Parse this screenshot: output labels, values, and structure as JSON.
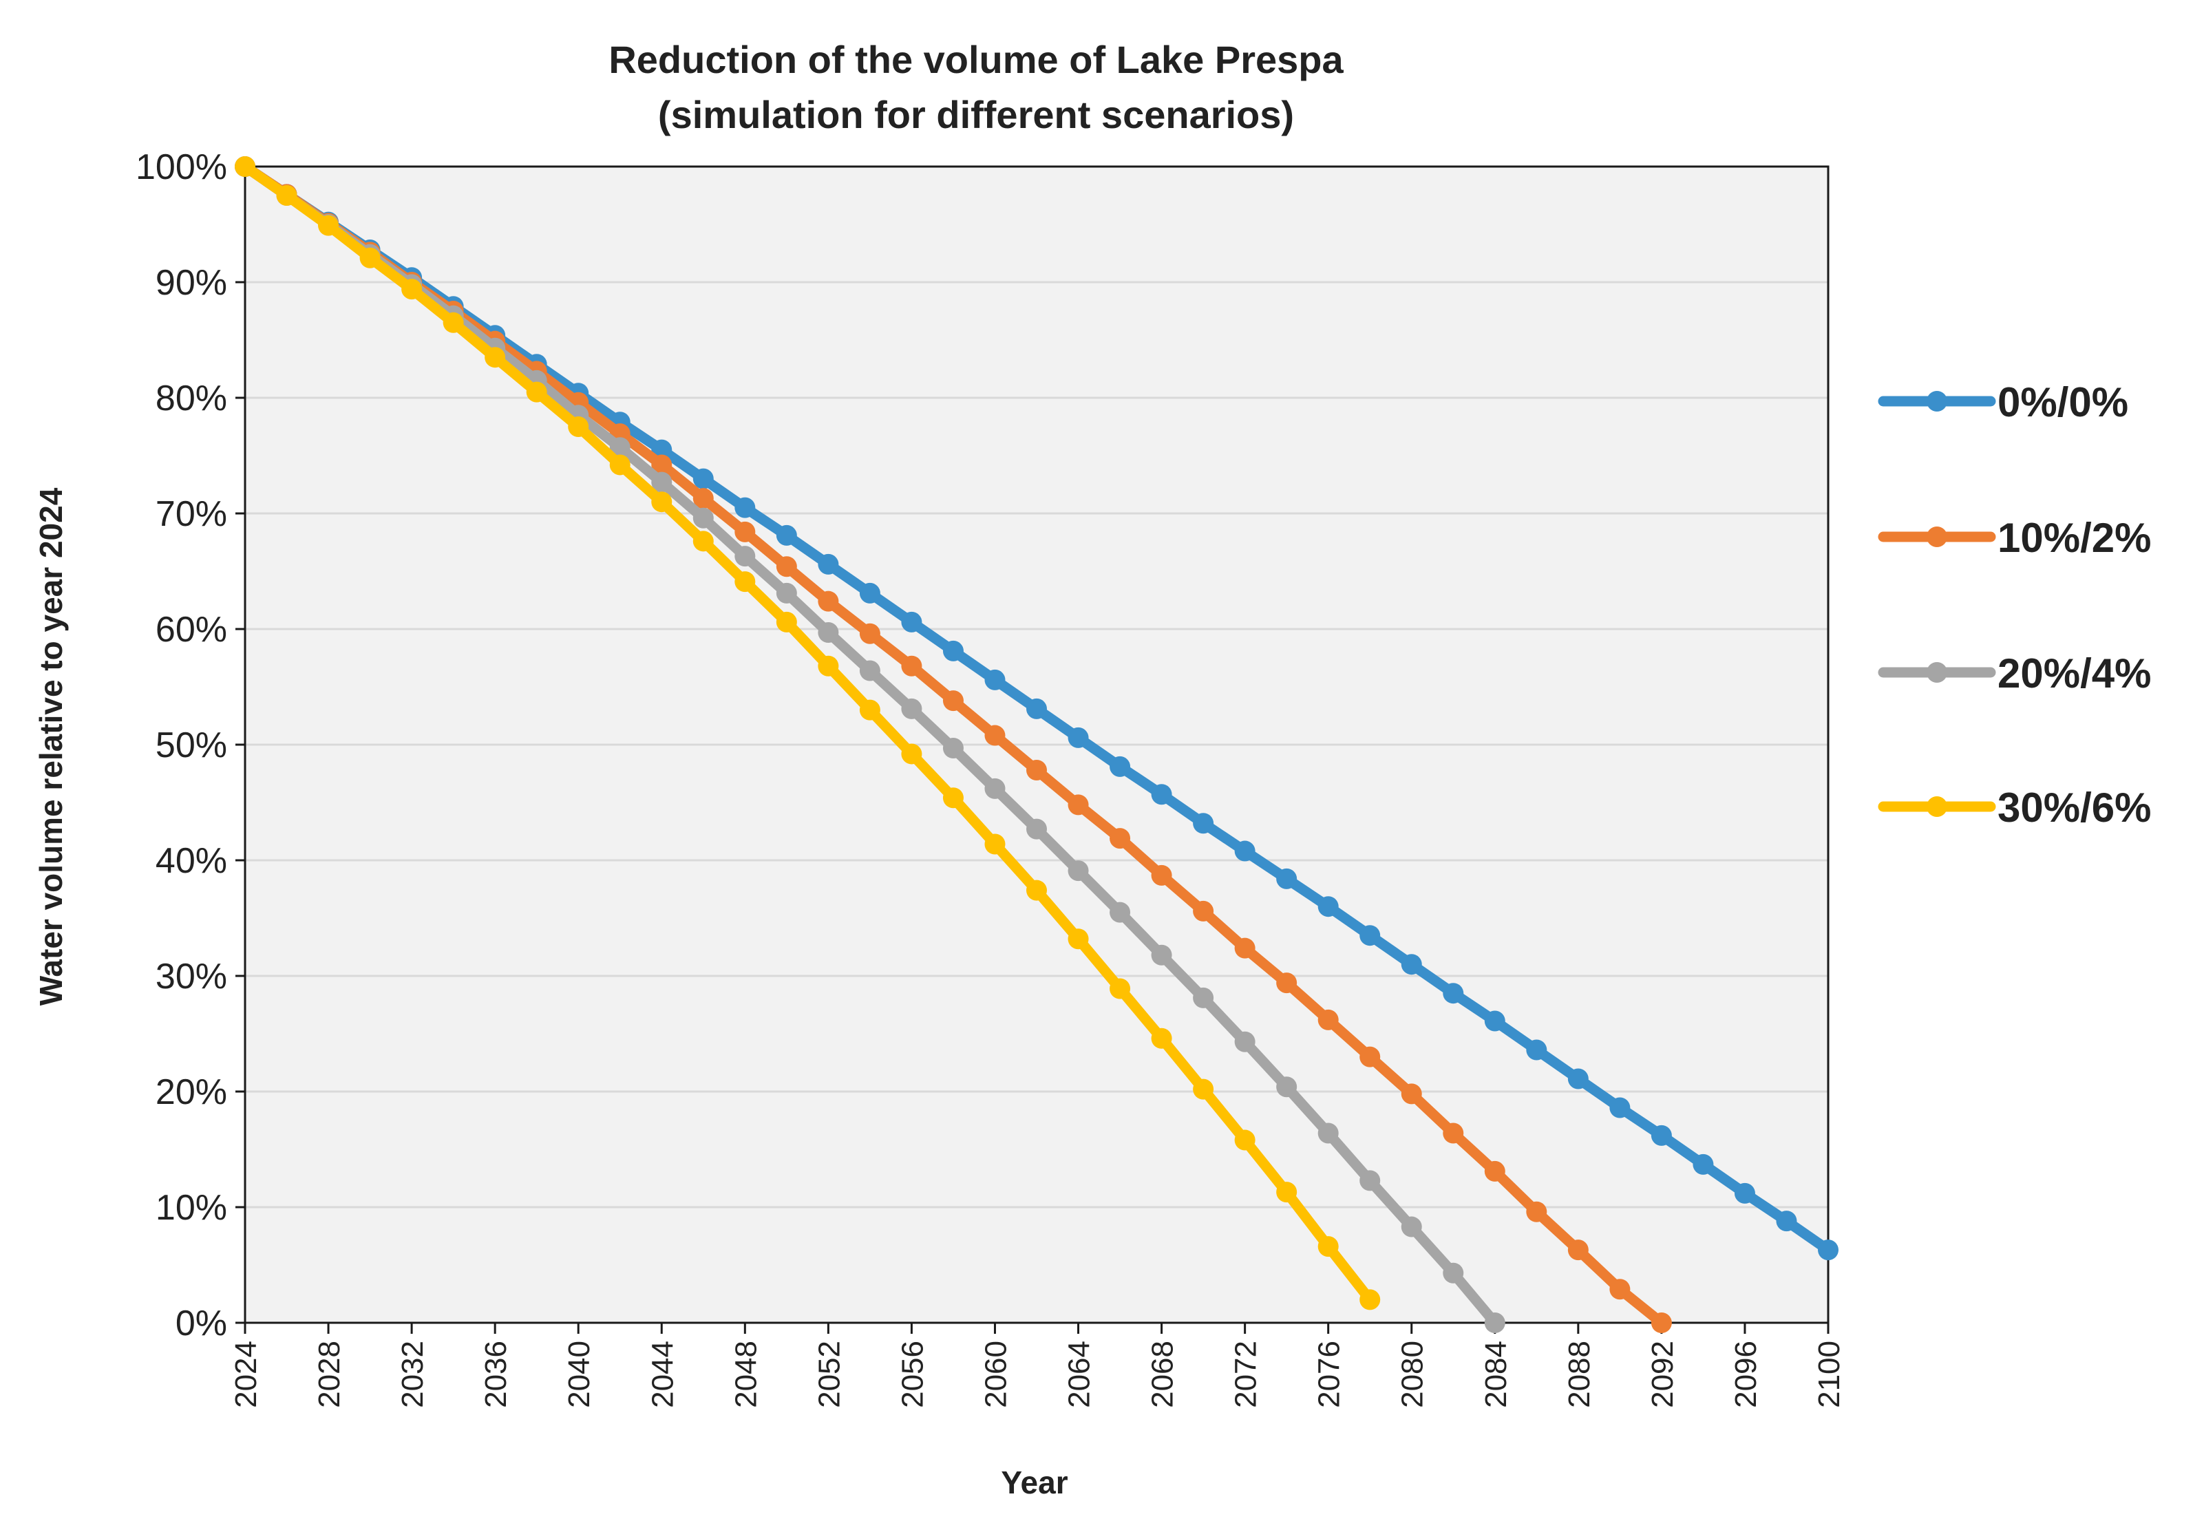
{
  "chart_data": {
    "type": "line",
    "title": [
      "Reduction of the volume of Lake Prespa",
      "(simulation for different scenarios)"
    ],
    "xlabel": "Year",
    "ylabel": "Water volume relative to year 2024",
    "xlim": [
      2024,
      2100
    ],
    "ylim": [
      0,
      100
    ],
    "xticks": [
      2024,
      2028,
      2032,
      2036,
      2040,
      2044,
      2048,
      2052,
      2056,
      2060,
      2064,
      2068,
      2072,
      2076,
      2080,
      2084,
      2088,
      2092,
      2096,
      2100
    ],
    "yticks": [
      0,
      10,
      20,
      30,
      40,
      50,
      60,
      70,
      80,
      90,
      100
    ],
    "ytick_labels": [
      "0%",
      "10%",
      "20%",
      "30%",
      "40%",
      "50%",
      "60%",
      "70%",
      "80%",
      "90%",
      "100%"
    ],
    "grid": "horizontal",
    "legend_position": "right",
    "series": [
      {
        "name": "0%/0%",
        "color": "#3A8FCB",
        "x": [
          2024,
          2026,
          2028,
          2030,
          2032,
          2034,
          2036,
          2038,
          2040,
          2042,
          2044,
          2046,
          2048,
          2050,
          2052,
          2054,
          2056,
          2058,
          2060,
          2062,
          2064,
          2066,
          2068,
          2070,
          2072,
          2074,
          2076,
          2078,
          2080,
          2082,
          2084,
          2086,
          2088,
          2090,
          2092,
          2094,
          2096,
          2098,
          2100
        ],
        "values": [
          100,
          97.6,
          95.2,
          92.8,
          90.4,
          87.9,
          85.4,
          82.9,
          80.4,
          77.9,
          75.5,
          73.0,
          70.5,
          68.1,
          65.6,
          63.1,
          60.6,
          58.1,
          55.6,
          53.1,
          50.6,
          48.1,
          45.7,
          43.2,
          40.8,
          38.4,
          36.0,
          33.5,
          31.0,
          28.5,
          26.1,
          23.6,
          21.1,
          18.6,
          16.2,
          13.7,
          11.2,
          8.8,
          6.3
        ]
      },
      {
        "name": "10%/2%",
        "color": "#ED7D31",
        "x": [
          2024,
          2026,
          2028,
          2030,
          2032,
          2034,
          2036,
          2038,
          2040,
          2042,
          2044,
          2046,
          2048,
          2050,
          2052,
          2054,
          2056,
          2058,
          2060,
          2062,
          2064,
          2066,
          2068,
          2070,
          2072,
          2074,
          2076,
          2078,
          2080,
          2082,
          2084,
          2086,
          2088,
          2090,
          2092
        ],
        "values": [
          100,
          97.6,
          95.1,
          92.6,
          90.0,
          87.5,
          84.9,
          82.3,
          79.6,
          76.9,
          74.2,
          71.3,
          68.4,
          65.4,
          62.4,
          59.6,
          56.8,
          53.8,
          50.8,
          47.8,
          44.8,
          41.9,
          38.7,
          35.6,
          32.4,
          29.4,
          26.2,
          23.0,
          19.8,
          16.4,
          13.1,
          9.6,
          6.3,
          2.9,
          0
        ]
      },
      {
        "name": "20%/4%",
        "color": "#A5A5A5",
        "x": [
          2024,
          2026,
          2028,
          2030,
          2032,
          2034,
          2036,
          2038,
          2040,
          2042,
          2044,
          2046,
          2048,
          2050,
          2052,
          2054,
          2056,
          2058,
          2060,
          2062,
          2064,
          2066,
          2068,
          2070,
          2072,
          2074,
          2076,
          2078,
          2080,
          2082,
          2084
        ],
        "values": [
          100,
          97.5,
          95.0,
          92.4,
          89.8,
          87.1,
          84.3,
          81.5,
          78.5,
          75.7,
          72.7,
          69.6,
          66.3,
          63.1,
          59.7,
          56.4,
          53.1,
          49.7,
          46.2,
          42.7,
          39.1,
          35.5,
          31.8,
          28.1,
          24.3,
          20.4,
          16.4,
          12.3,
          8.3,
          4.3,
          0
        ]
      },
      {
        "name": "30%/6%",
        "color": "#FFC000",
        "x": [
          2024,
          2026,
          2028,
          2030,
          2032,
          2034,
          2036,
          2038,
          2040,
          2042,
          2044,
          2046,
          2048,
          2050,
          2052,
          2054,
          2056,
          2058,
          2060,
          2062,
          2064,
          2066,
          2068,
          2070,
          2072,
          2074,
          2076,
          2078
        ],
        "values": [
          100,
          97.5,
          94.9,
          92.1,
          89.4,
          86.5,
          83.5,
          80.5,
          77.5,
          74.2,
          71.0,
          67.6,
          64.1,
          60.6,
          56.8,
          53.0,
          49.2,
          45.4,
          41.4,
          37.4,
          33.2,
          28.9,
          24.6,
          20.2,
          15.8,
          11.3,
          6.6,
          2.0
        ]
      }
    ]
  }
}
